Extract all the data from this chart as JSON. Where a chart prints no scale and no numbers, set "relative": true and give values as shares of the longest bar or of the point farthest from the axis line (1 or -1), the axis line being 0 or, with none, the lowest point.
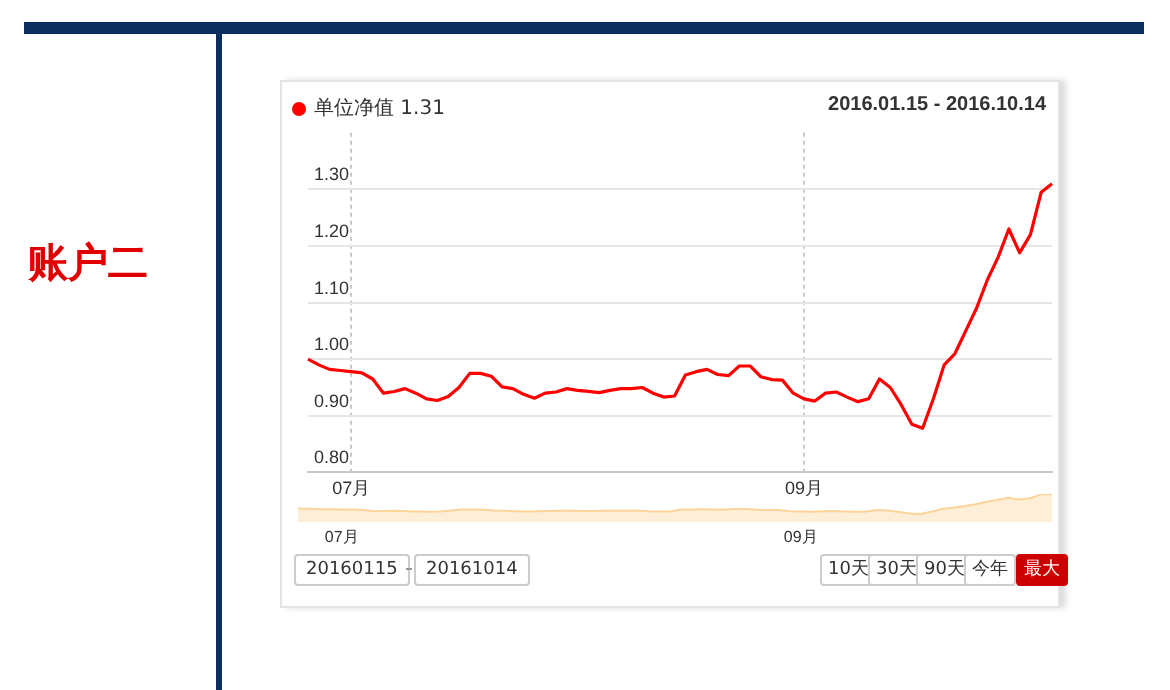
{
  "chart_data": [
    {
      "type": "line",
      "title": "账户二",
      "subtitle": "2016.01.15 - 2016.10.14",
      "categories": [
        null,
        null,
        null,
        null,
        "07月",
        null,
        null,
        null,
        null,
        null,
        null,
        null,
        null,
        null,
        null,
        null,
        null,
        null,
        null,
        null,
        null,
        null,
        null,
        null,
        null,
        null,
        null,
        null,
        null,
        null,
        null,
        null,
        null,
        null,
        null,
        null,
        null,
        null,
        null,
        null,
        null,
        null,
        null,
        null,
        null,
        null,
        "09月",
        null,
        null,
        null,
        null,
        null,
        null,
        null,
        null,
        null,
        null,
        null,
        null,
        null,
        null,
        null,
        null,
        null,
        null,
        null,
        null,
        null,
        null,
        null
      ],
      "series": [
        {
          "name": "单位净值 1.31",
          "color": "#ff0000",
          "values": [
            1.0,
            0.99,
            0.982,
            0.98,
            0.978,
            0.976,
            0.965,
            0.94,
            0.943,
            0.948,
            0.94,
            0.93,
            0.927,
            0.934,
            0.95,
            0.975,
            0.975,
            0.97,
            0.951,
            0.948,
            0.938,
            0.931,
            0.94,
            0.942,
            0.948,
            0.945,
            0.943,
            0.941,
            0.945,
            0.948,
            0.948,
            0.95,
            0.94,
            0.933,
            0.935,
            0.972,
            0.978,
            0.982,
            0.973,
            0.971,
            0.988,
            0.988,
            0.969,
            0.964,
            0.963,
            0.94,
            0.93,
            0.926,
            0.94,
            0.942,
            0.933,
            0.925,
            0.93,
            0.965,
            0.95,
            0.92,
            0.885,
            0.878,
            0.93,
            0.99,
            1.01,
            1.05,
            1.09,
            1.14,
            1.18,
            1.23,
            1.188,
            1.22,
            1.295,
            1.31
          ]
        }
      ],
      "ylim": [
        0.8,
        1.4
      ],
      "yticks": [
        {
          "value": 0.8,
          "label": "0.80"
        },
        {
          "value": 0.9,
          "label": "0.90"
        },
        {
          "value": 1.0,
          "label": "1.00"
        },
        {
          "value": 1.1,
          "label": "1.10"
        },
        {
          "value": 1.2,
          "label": "1.20"
        },
        {
          "value": 1.3,
          "label": "1.30"
        }
      ],
      "grid": true,
      "legend": "top left",
      "marker": "none",
      "line_style": "solid",
      "annotations": [
        "20160115",
        "20161014",
        "10天",
        "30天",
        "90天",
        "今年",
        "最大"
      ]
    },
    {
      "type": "area",
      "relative": true,
      "tick_labels": "x",
      "categories": [
        null,
        null,
        null,
        null,
        "07月",
        null,
        null,
        null,
        null,
        null,
        null,
        null,
        null,
        null,
        null,
        null,
        null,
        null,
        null,
        null,
        null,
        null,
        null,
        null,
        null,
        null,
        null,
        null,
        null,
        null,
        null,
        null,
        null,
        null,
        null,
        null,
        null,
        null,
        null,
        null,
        null,
        null,
        null,
        null,
        null,
        null,
        "09月",
        null,
        null,
        null,
        null,
        null,
        null,
        null,
        null,
        null,
        null,
        null,
        null,
        null,
        null,
        null,
        null,
        null,
        null,
        null,
        null,
        null,
        null,
        null
      ],
      "series": [
        {
          "color": "#fbd49a",
          "values": [
            0.28,
            0.26,
            0.24,
            0.24,
            0.23,
            0.23,
            0.2,
            0.14,
            0.15,
            0.16,
            0.14,
            0.12,
            0.11,
            0.13,
            0.17,
            0.22,
            0.22,
            0.21,
            0.17,
            0.16,
            0.14,
            0.12,
            0.14,
            0.15,
            0.16,
            0.16,
            0.15,
            0.15,
            0.16,
            0.16,
            0.16,
            0.17,
            0.14,
            0.13,
            0.13,
            0.22,
            0.23,
            0.24,
            0.22,
            0.22,
            0.25,
            0.25,
            0.21,
            0.2,
            0.2,
            0.14,
            0.12,
            0.11,
            0.14,
            0.15,
            0.13,
            0.11,
            0.12,
            0.2,
            0.17,
            0.1,
            0.02,
            0,
            0.12,
            0.26,
            0.31,
            0.4,
            0.49,
            0.61,
            0.7,
            0.81,
            0.72,
            0.79,
            0.97,
            1
          ]
        }
      ]
    }
  ]
}
